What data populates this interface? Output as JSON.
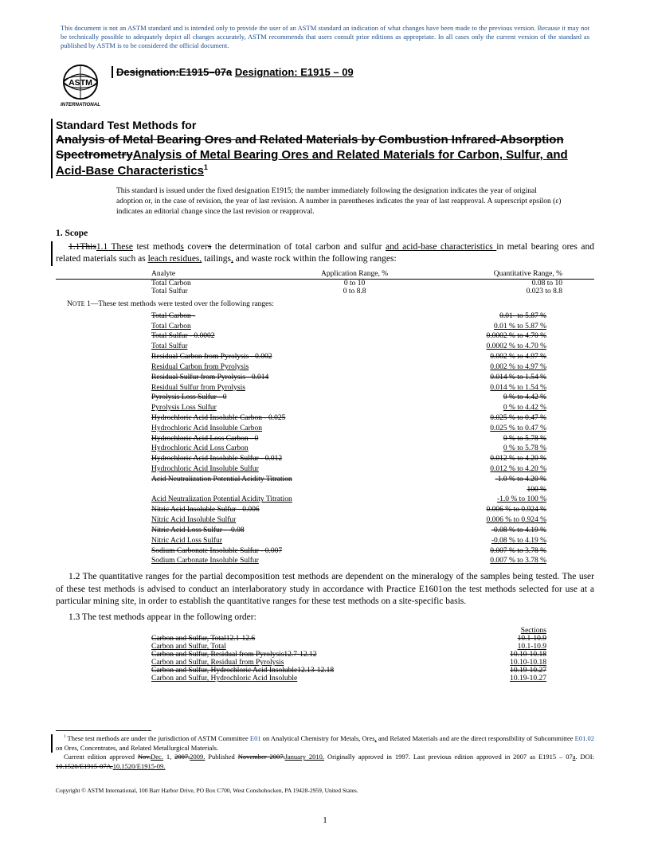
{
  "disclaimer": "This document is not an ASTM standard and is intended only to provide the user of an ASTM standard an indication of what changes have been made to the previous version. Because it may not be technically possible to adequately depict all changes accurately, ASTM recommends that users consult prior editions as appropriate. In all cases only the current version of the standard as published by ASTM is to be considered the official document.",
  "designation_old": "Designation:E1915–07a",
  "designation_new": "Designation: E1915 – 09",
  "title_lead": "Standard Test Methods for",
  "title_old": "Analysis of Metal Bearing Ores and Related Materials by Combustion Infrared-Absorption Spectrometry",
  "title_new": "Analysis of Metal Bearing Ores and Related Materials for Carbon, Sulfur, and Acid-Base Characteristics",
  "title_sup": "1",
  "issue_note": "This standard is issued under the fixed designation E1915; the number immediately following the designation indicates the year of original adoption or, in the case of revision, the year of last revision. A number in parentheses indicates the year of last reapproval. A superscript epsilon (ε) indicates an editorial change since the last revision or reapproval.",
  "scope_head": "1. Scope",
  "para_1_1_pre_old": "1.1This",
  "para_1_1_pre_new": "1.1  These",
  "para_1_1_mid1": " test method",
  "para_1_1_s": "s",
  "para_1_1_mid2": " cover",
  "para_1_1_s2": "s",
  "para_1_1_mid3": " the determination of total carbon and sulfur ",
  "para_1_1_ins": "and acid-base characteristics ",
  "para_1_1_mid4": "in metal bearing ores and related materials such as ",
  "para_1_1_ins2": "leach residues,",
  "para_1_1_mid5": " tailings",
  "para_1_1_comma": ",",
  "para_1_1_end": " and waste rock within the following ranges:",
  "range_table": {
    "headers": [
      "Analyte",
      "Application Range, %",
      "Quantitative Range, %"
    ],
    "rows": [
      [
        "Total Carbon",
        "0 to 10",
        "0.08 to 10"
      ],
      [
        "Total Sulfur",
        "0 to 8.8",
        "0.023 to 8.8"
      ]
    ]
  },
  "note1": "NOTE  1—These test methods were tested over the following ranges:",
  "tested_rows": [
    {
      "name": "Total Carbon - ",
      "range": "0.01- to 5.87 %",
      "strike": true
    },
    {
      "name": "Total Carbon",
      "range": "0.01 % to 5.87 %",
      "underline": true
    },
    {
      "name": "Total Sulfur - 0.0002",
      "range": "0.0002 % to 4.70 %",
      "strike": true
    },
    {
      "name": "Total Sulfur",
      "range": "0.0002 % to 4.70 %",
      "underline": true
    },
    {
      "name": "Residual Carbon from Pyrolysis - 0.002",
      "range": "0.002 % to 4.97 %",
      "strike": true
    },
    {
      "name": "Residual Carbon from Pyrolysis",
      "range": "0.002 % to 4.97 %",
      "underline": true
    },
    {
      "name": "Residual Sulfur from Pyrolysis - 0.014",
      "range": "0.014 % to 1.54 %",
      "strike": true
    },
    {
      "name": "Residual Sulfur from Pyrolysis",
      "range": "0.014 % to 1.54 %",
      "underline": true
    },
    {
      "name": "Pyrolysis Loss Sulfur - 0",
      "range": "0 % to 4.42 %",
      "strike": true
    },
    {
      "name": "Pyrolysis Loss Sulfur",
      "range": "0 % to 4.42 %",
      "underline": true
    },
    {
      "name": "Hydrochloric Acid Insoluble Carbon - 0.025",
      "range": "0.025 % to 0.47 %",
      "strike": true
    },
    {
      "name": "Hydrochloric Acid Insoluble Carbon",
      "range": "0.025 % to 0.47 %",
      "underline": true
    },
    {
      "name": "Hydrochloric Acid Loss Carbon - 0",
      "range": "0 % to 5.78 %",
      "strike": true
    },
    {
      "name": "Hydrochloric Acid Loss Carbon",
      "range": "0 % to 5.78 %",
      "underline": true
    },
    {
      "name": "Hydrochloric Acid Insoluble Sulfur - 0.012",
      "range": "0.012 % to 4.20 %",
      "strike": true
    },
    {
      "name": "Hydrochloric Acid Insoluble Sulfur",
      "range": "0.012 % to 4.20 %",
      "underline": true
    },
    {
      "name": "Acid Neutralization Potential Acidity Titration",
      "range": "-1.0 % to 4.20 %",
      "strike": true
    },
    {
      "name": "",
      "range": "100 %",
      "strike": true
    },
    {
      "name": "Acid Neutralization Potential Acidity Titration",
      "range": "-1.0 % to 100 %",
      "underline": true
    },
    {
      "name": "Nitric Acid Insoluble Sulfur - 0.006",
      "range": "0.006 % to 0.924 %",
      "strike": true
    },
    {
      "name": "Nitric Acid Insoluble Sulfur",
      "range": "0.006 % to 0.924 %",
      "underline": true
    },
    {
      "name": "Nitric Acid Loss Sulfur - -0.08",
      "range": "-0.08 % to 4.19 %",
      "strike": true
    },
    {
      "name": "Nitric Acid Loss Sulfur",
      "range": "-0.08 % to 4.19 %",
      "underline": true
    },
    {
      "name": "Sodium Carbonate Insoluble Sulfur - 0.007",
      "range": "0.007 % to 3.78 %",
      "strike": true
    },
    {
      "name": "Sodium Carbonate Insoluble Sulfur",
      "range": "0.007 % to 3.78 %",
      "underline": true
    }
  ],
  "para_1_2": "1.2 The quantitative ranges for the partial decomposition test methods are dependent on the mineralogy of the samples being tested. The user of these test methods is advised to conduct an interlaboratory study in accordance with Practice E1601on the test methods selected for use at a particular mining site, in order to establish the quantitative ranges for these test methods on a site-specific basis.",
  "para_1_3": "1.3 The test methods appear in the following order:",
  "sections_header": "Sections",
  "sections_rows": [
    {
      "name": "Carbon and Sulfur, Total12.1-12.6",
      "sec": "10.1-10.9",
      "strike": true
    },
    {
      "name": "Carbon and Sulfur, Total",
      "sec": "10.1-10.9",
      "underline": true
    },
    {
      "name": "Carbon and Sulfur, Residual from Pyrolysis12.7-12.12",
      "sec": "10.10-10.18",
      "strike": true
    },
    {
      "name": "Carbon and Sulfur, Residual from Pyrolysis",
      "sec": "10.10-10.18",
      "underline": true
    },
    {
      "name": "Carbon and Sulfur, Hydrochloric Acid Insoluble12.13-12.18",
      "sec": "10.19-10.27",
      "strike": true
    },
    {
      "name": "Carbon and Sulfur, Hydrochloric Acid Insoluble",
      "sec": "10.19-10.27",
      "underline": true
    }
  ],
  "footnote1_a": " These test methods are under the jurisdiction of ASTM Committee ",
  "footnote1_link1": "E01",
  "footnote1_b": " on Analytical Chemistry for Metals, Ores",
  "footnote1_comma": ",",
  "footnote1_c": " and Related Materials and are the direct responsibility of Subcommittee ",
  "footnote1_link2": "E01.02",
  "footnote1_d": " on Ores, Concentrates, and Related Metallurgical Materials.",
  "footnote2_a": "Current edition approved ",
  "footnote2_old1": "Nov.",
  "footnote2_new1": "Dec.",
  "footnote2_b": " 1, ",
  "footnote2_old2": "2007.",
  "footnote2_new2": "2009.",
  "footnote2_c": " Published ",
  "footnote2_old3": "November 2007.",
  "footnote2_new3": "January 2010.",
  "footnote2_d": " Originally approved in 1997. Last previous edition approved in 2007 as E1915 – 07",
  "footnote2_a_under": "a",
  "footnote2_e": ". DOI: ",
  "footnote2_old4": "10.1520/E1915-07A.",
  "footnote2_new4": "10.1520/E1915-09.",
  "copyright": "Copyright © ASTM International, 100 Barr Harbor Drive, PO Box C700, West Conshohocken, PA 19428-2959, United States.",
  "page_num": "1"
}
